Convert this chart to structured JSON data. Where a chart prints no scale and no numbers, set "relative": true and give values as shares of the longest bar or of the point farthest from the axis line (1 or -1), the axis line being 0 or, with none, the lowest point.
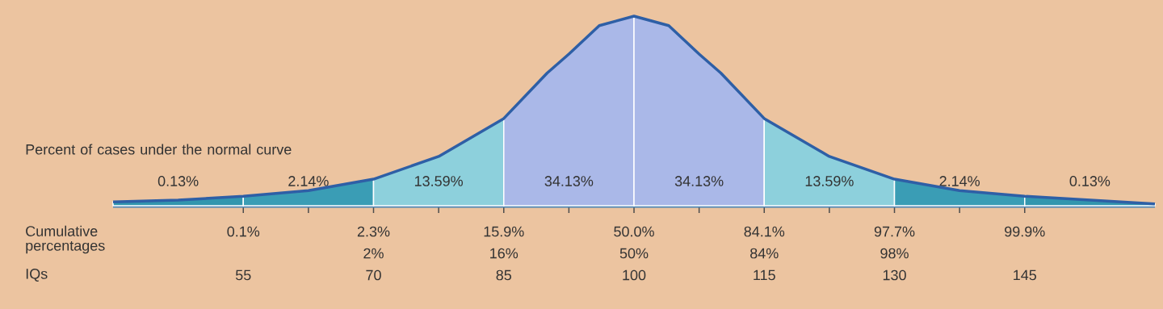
{
  "chart_data": {
    "type": "area",
    "relative": true,
    "x": [
      40,
      47.5,
      55,
      62.5,
      70,
      77.5,
      85,
      90,
      92.5,
      96,
      100,
      104,
      107.5,
      110,
      115,
      122.5,
      130,
      137.5,
      145,
      152.5,
      160
    ],
    "series": [
      {
        "name": "0.13%",
        "color": "#3296ae",
        "values": [
          0.02,
          0.03,
          0.05,
          null,
          null,
          null,
          null,
          null,
          null,
          null,
          null,
          null,
          null,
          null,
          null,
          null,
          null,
          null,
          null,
          null,
          null
        ]
      },
      {
        "name": "2.14%",
        "color": "#3a9db5",
        "values": [
          null,
          null,
          0.05,
          0.08,
          0.14,
          null,
          null,
          null,
          null,
          null,
          null,
          null,
          null,
          null,
          null,
          null,
          null,
          null,
          null,
          null,
          null
        ]
      },
      {
        "name": "13.59%",
        "color": "#8dd0dc",
        "values": [
          null,
          null,
          null,
          null,
          0.14,
          0.26,
          0.46,
          null,
          null,
          null,
          null,
          null,
          null,
          null,
          null,
          null,
          null,
          null,
          null,
          null,
          null
        ]
      },
      {
        "name": "34.13%",
        "color": "#aab8e8",
        "values": [
          null,
          null,
          null,
          null,
          null,
          null,
          0.46,
          0.7,
          0.8,
          0.95,
          1,
          null,
          null,
          null,
          null,
          null,
          null,
          null,
          null,
          null,
          null
        ]
      },
      {
        "name": "34.13%",
        "color": "#aab8e8",
        "values": [
          null,
          null,
          null,
          null,
          null,
          null,
          null,
          null,
          null,
          null,
          1,
          0.95,
          0.8,
          0.7,
          0.46,
          null,
          null,
          null,
          null,
          null,
          null
        ]
      },
      {
        "name": "13.59%",
        "color": "#8dd0dc",
        "values": [
          null,
          null,
          null,
          null,
          null,
          null,
          null,
          null,
          null,
          null,
          null,
          null,
          null,
          null,
          0.46,
          0.26,
          0.14,
          null,
          null,
          null,
          null
        ]
      },
      {
        "name": "2.14%",
        "color": "#3a9db5",
        "values": [
          null,
          null,
          null,
          null,
          null,
          null,
          null,
          null,
          null,
          null,
          null,
          null,
          null,
          null,
          null,
          null,
          0.14,
          0.08,
          0.05,
          null,
          null
        ]
      },
      {
        "name": "0.13%",
        "color": "#3296ae",
        "values": [
          null,
          null,
          null,
          null,
          null,
          null,
          null,
          null,
          null,
          null,
          null,
          null,
          null,
          null,
          null,
          null,
          null,
          null,
          0.05,
          0.03,
          0.01
        ]
      },
      {
        "type": "line",
        "color": "#2e5fa6",
        "values": [
          0.02,
          0.03,
          0.05,
          0.08,
          0.14,
          0.26,
          0.46,
          0.7,
          0.8,
          0.95,
          1,
          0.95,
          0.8,
          0.7,
          0.46,
          0.26,
          0.14,
          0.08,
          0.05,
          0.03,
          0.01
        ]
      }
    ],
    "xlim": [
      40,
      160
    ],
    "xticks": [
      55,
      {
        "value": 62.5,
        "label": null
      },
      70,
      {
        "value": 77.5,
        "label": null
      },
      85,
      {
        "value": 92.5,
        "label": null
      },
      100,
      {
        "value": 107.5,
        "label": null
      },
      115,
      {
        "value": 122.5,
        "label": null
      },
      130,
      {
        "value": 137.5,
        "label": null
      },
      145
    ],
    "xlabel": "IQs",
    "annotations": [
      "Percent of cases under the normal curve",
      "Cumulative percentages",
      {
        "text": "0.1%",
        "x": 55
      },
      {
        "text": "2.3%",
        "x": 70
      },
      {
        "text": "15.9%",
        "x": 85
      },
      {
        "text": "50.0%",
        "x": 100
      },
      {
        "text": "84.1%",
        "x": 115
      },
      {
        "text": "97.7%",
        "x": 130
      },
      {
        "text": "99.9%",
        "x": 145
      },
      "2%",
      "16%",
      "50%",
      "84%",
      "98%"
    ]
  }
}
